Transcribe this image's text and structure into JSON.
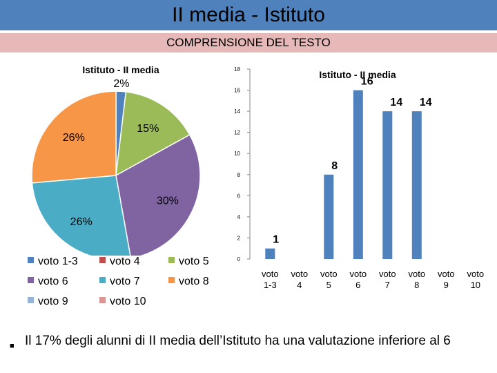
{
  "header": {
    "title": "II media - Istituto",
    "subtitle": "COMPRENSIONE DEL TESTO"
  },
  "colors": {
    "title_bg": "#4f81bd",
    "subtitle_bg": "#e6b9b8",
    "bar": "#4f81bd"
  },
  "chart_data": [
    {
      "type": "pie",
      "title": "Istituto - II media",
      "categories": [
        "voto 1-3",
        "voto 4",
        "voto 5",
        "voto 6",
        "voto 7",
        "voto 8",
        "voto 9",
        "voto 10"
      ],
      "values": [
        1,
        0,
        8,
        16,
        14,
        14,
        0,
        0
      ],
      "slice_labels": [
        "2%",
        "",
        "15%",
        "30%",
        "26%",
        "26%",
        "",
        ""
      ],
      "colors": [
        "#4f81bd",
        "#c0504d",
        "#9bbb59",
        "#8064a2",
        "#4bacc6",
        "#f79646",
        "#95b3d7",
        "#d99694"
      ],
      "legend": "bottom"
    },
    {
      "type": "bar",
      "title": "Istituto - II media",
      "categories": [
        "voto 1-3",
        "voto 4",
        "voto 5",
        "voto 6",
        "voto 7",
        "voto 8",
        "voto 9",
        "voto 10"
      ],
      "values": [
        1,
        0,
        8,
        16,
        14,
        14,
        0,
        0
      ],
      "data_labels": [
        "1",
        "",
        "8",
        "16",
        "14",
        "14",
        "",
        ""
      ],
      "ylim": [
        0,
        18
      ],
      "yticks": [
        "0",
        "2",
        "4",
        "6",
        "8",
        "10",
        "12",
        "14",
        "16",
        "18"
      ],
      "color": "#4f81bd",
      "grid": false
    }
  ],
  "bullet": {
    "text": "Il 17% degli alunni di II media dell’Istituto ha una valutazione inferiore al 6"
  }
}
